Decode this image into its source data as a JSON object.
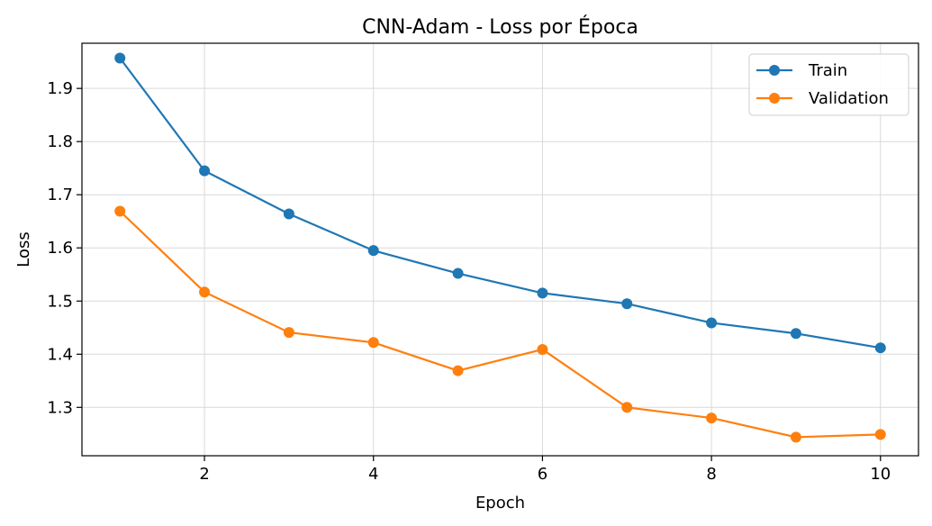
{
  "chart_data": {
    "type": "line",
    "title": "CNN-Adam - Loss por Época",
    "xlabel": "Epoch",
    "ylabel": "Loss",
    "x": [
      1,
      2,
      3,
      4,
      5,
      6,
      7,
      8,
      9,
      10
    ],
    "xlim": [
      0.55,
      10.45
    ],
    "ylim": [
      1.209,
      1.985
    ],
    "xticks": [
      2,
      4,
      6,
      8,
      10
    ],
    "yticks": [
      1.3,
      1.4,
      1.5,
      1.6,
      1.7,
      1.8,
      1.9
    ],
    "grid": true,
    "legend_position": "top-right",
    "series": [
      {
        "name": "Train",
        "color": "#1f77b4",
        "values": [
          1.957,
          1.745,
          1.664,
          1.595,
          1.552,
          1.515,
          1.495,
          1.459,
          1.439,
          1.412
        ]
      },
      {
        "name": "Validation",
        "color": "#ff7f0e",
        "values": [
          1.669,
          1.517,
          1.441,
          1.422,
          1.369,
          1.409,
          1.3,
          1.28,
          1.244,
          1.249
        ]
      }
    ]
  }
}
